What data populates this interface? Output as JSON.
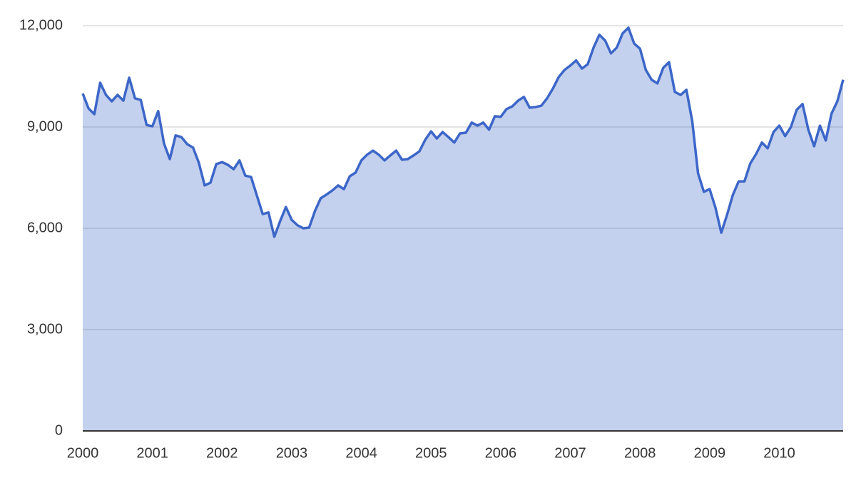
{
  "chart_data": {
    "type": "area",
    "color": "#3c66c8",
    "grid": true,
    "categories": [
      "2000",
      null,
      null,
      null,
      null,
      null,
      null,
      null,
      null,
      null,
      null,
      null,
      "2001",
      null,
      null,
      null,
      null,
      null,
      null,
      null,
      null,
      null,
      null,
      null,
      "2002",
      null,
      null,
      null,
      null,
      null,
      null,
      null,
      null,
      null,
      null,
      null,
      "2003",
      null,
      null,
      null,
      null,
      null,
      null,
      null,
      null,
      null,
      null,
      null,
      "2004",
      null,
      null,
      null,
      null,
      null,
      null,
      null,
      null,
      null,
      null,
      null,
      "2005",
      null,
      null,
      null,
      null,
      null,
      null,
      null,
      null,
      null,
      null,
      null,
      "2006",
      null,
      null,
      null,
      null,
      null,
      null,
      null,
      null,
      null,
      null,
      null,
      "2007",
      null,
      null,
      null,
      null,
      null,
      null,
      null,
      null,
      null,
      null,
      null,
      "2008",
      null,
      null,
      null,
      null,
      null,
      null,
      null,
      null,
      null,
      null,
      null,
      "2009",
      null,
      null,
      null,
      null,
      null,
      null,
      null,
      null,
      null,
      null,
      null,
      "2010",
      null,
      null,
      null,
      null,
      null,
      null,
      null,
      null,
      null,
      null,
      null
    ],
    "values": [
      9990,
      9550,
      9380,
      10310,
      9950,
      9760,
      9950,
      9780,
      10460,
      9850,
      9800,
      9060,
      9020,
      9470,
      8510,
      8050,
      8750,
      8700,
      8490,
      8390,
      7940,
      7270,
      7350,
      7900,
      7960,
      7880,
      7750,
      8010,
      7560,
      7520,
      6970,
      6420,
      6470,
      5750,
      6210,
      6630,
      6250,
      6090,
      6000,
      6020,
      6510,
      6890,
      7000,
      7120,
      7270,
      7160,
      7540,
      7650,
      8010,
      8180,
      8300,
      8180,
      8010,
      8160,
      8300,
      8030,
      8050,
      8160,
      8280,
      8620,
      8870,
      8660,
      8850,
      8700,
      8540,
      8810,
      8830,
      9130,
      9040,
      9130,
      8920,
      9320,
      9300,
      9530,
      9610,
      9780,
      9890,
      9570,
      9590,
      9630,
      9850,
      10140,
      10480,
      10690,
      10820,
      10970,
      10730,
      10860,
      11350,
      11730,
      11560,
      11180,
      11350,
      11770,
      11940,
      11470,
      11320,
      10690,
      10400,
      10290,
      10750,
      10920,
      10040,
      9950,
      10100,
      9170,
      7630,
      7080,
      7160,
      6610,
      5870,
      6400,
      6990,
      7390,
      7390,
      7920,
      8200,
      8540,
      8370,
      8850,
      9040,
      8730,
      9000,
      9510,
      9680,
      8920,
      8430,
      9040,
      8600,
      9400,
      9760,
      10400
    ],
    "ylim": [
      0,
      12000
    ],
    "yticks": [
      0,
      {
        "value": 3000,
        "label": "3,000"
      },
      {
        "value": 6000,
        "label": "6,000"
      },
      {
        "value": 9000,
        "label": "9,000"
      },
      {
        "value": 12000,
        "label": "12,000"
      }
    ]
  }
}
